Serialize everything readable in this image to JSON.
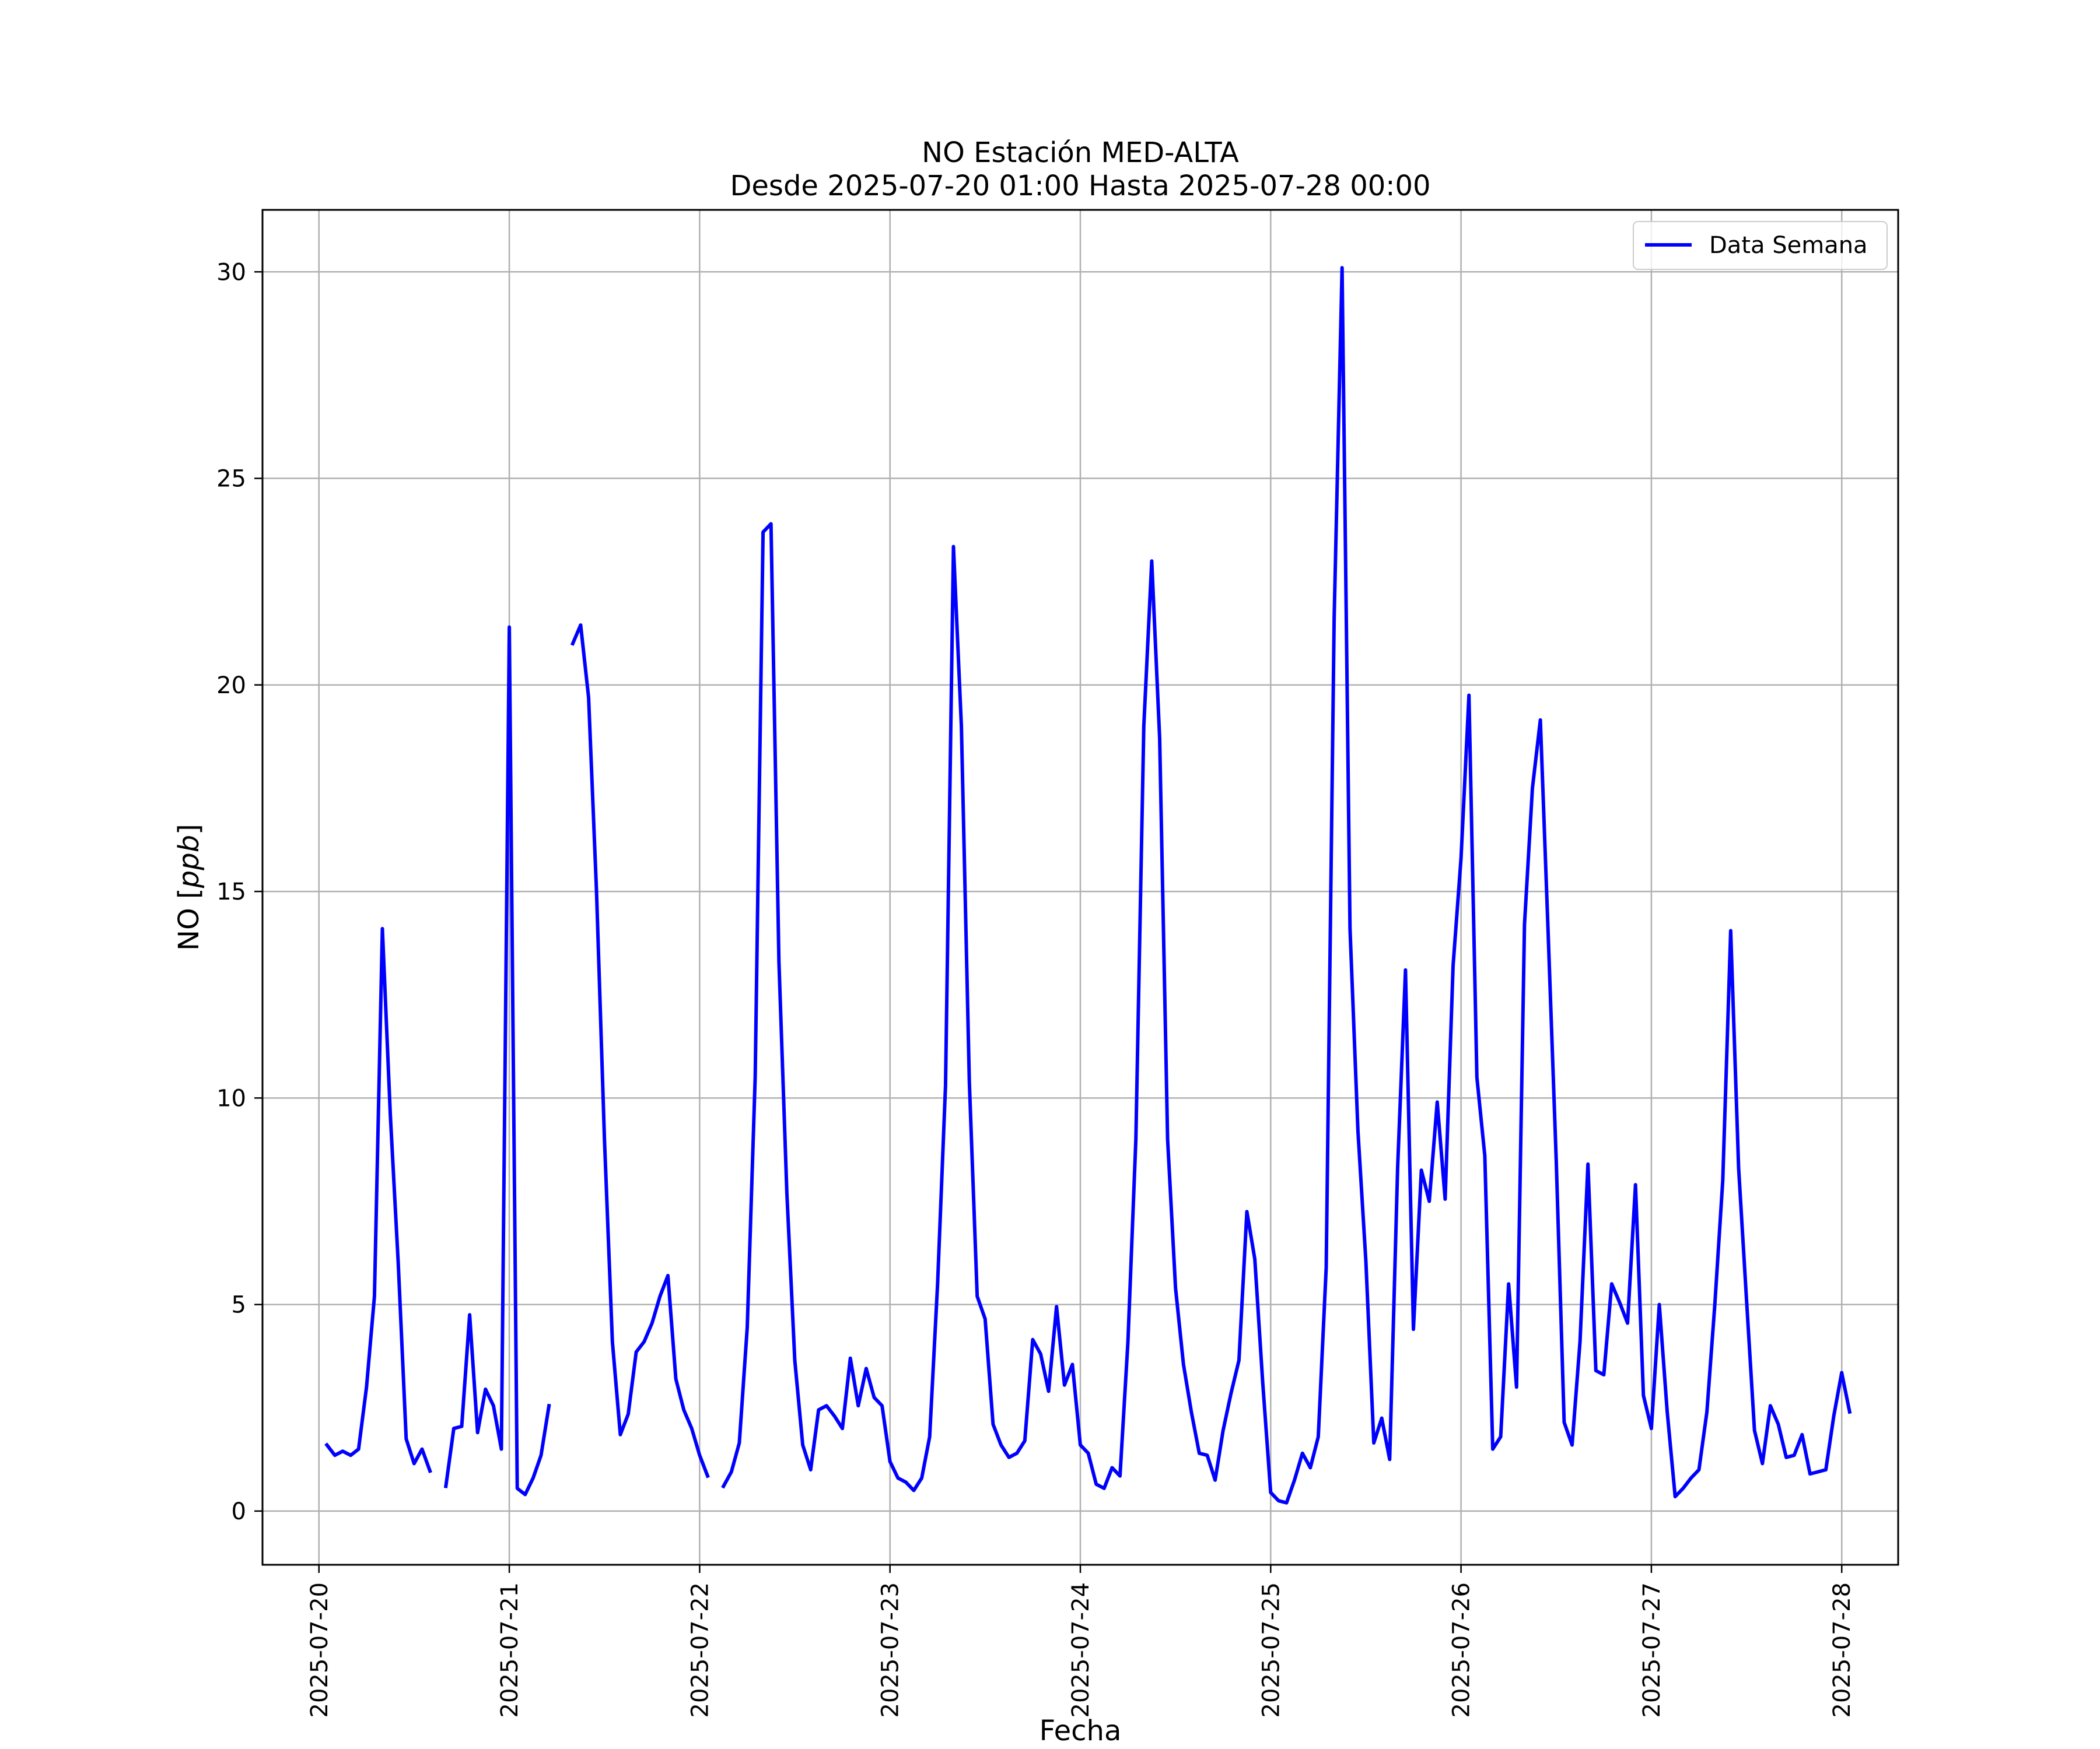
{
  "chart_data": {
    "type": "line",
    "title": "NO Estación MED-ALTA",
    "subtitle": "Desde 2025-07-20 01:00 Hasta 2025-07-28 00:00",
    "xlabel": "Fecha",
    "ylabel": "NO [ppb]",
    "ylabel_main": "NO [",
    "ylabel_unit": "ppb",
    "ylabel_close": "]",
    "xlim": [
      "2025-07-19 16:53",
      "2025-07-28 07:07"
    ],
    "ylim": [
      -1.3,
      31.5
    ],
    "x_ticks": [
      "2025-07-20",
      "2025-07-21",
      "2025-07-22",
      "2025-07-23",
      "2025-07-24",
      "2025-07-25",
      "2025-07-26",
      "2025-07-27",
      "2025-07-28"
    ],
    "y_ticks": [
      "0",
      "5",
      "10",
      "15",
      "20",
      "25",
      "30"
    ],
    "grid": true,
    "legend_position": "top-right",
    "series": [
      {
        "name": "Data Semana",
        "color": "#0000ff",
        "start": "2025-07-20 01:00",
        "interval_hours": 1,
        "values": [
          1.6,
          1.35,
          1.45,
          1.35,
          1.5,
          3.0,
          5.2,
          14.1,
          9.6,
          6.0,
          1.75,
          1.15,
          1.5,
          0.97,
          null,
          0.6,
          2.0,
          2.05,
          4.75,
          1.9,
          2.95,
          2.55,
          1.5,
          21.4,
          0.55,
          0.4,
          0.8,
          1.35,
          2.55,
          null,
          null,
          21.0,
          21.45,
          19.7,
          15.0,
          9.0,
          4.1,
          1.85,
          2.35,
          3.85,
          4.1,
          4.55,
          5.2,
          5.7,
          3.2,
          2.45,
          2.0,
          1.35,
          0.85,
          null,
          0.6,
          0.95,
          1.65,
          4.45,
          10.5,
          23.7,
          23.9,
          13.3,
          7.7,
          3.65,
          1.6,
          1.0,
          2.45,
          2.55,
          2.3,
          2.0,
          3.7,
          2.55,
          3.45,
          2.75,
          2.55,
          1.2,
          0.8,
          0.7,
          0.5,
          0.8,
          1.8,
          5.5,
          10.3,
          23.35,
          19.0,
          10.4,
          5.2,
          4.65,
          2.1,
          1.6,
          1.3,
          1.4,
          1.7,
          4.15,
          3.8,
          2.9,
          4.95,
          3.05,
          3.55,
          1.6,
          1.4,
          0.65,
          0.55,
          1.05,
          0.85,
          4.1,
          9.0,
          19.0,
          23.0,
          18.7,
          9.0,
          5.4,
          3.55,
          2.4,
          1.4,
          1.35,
          0.75,
          1.95,
          2.85,
          3.65,
          7.25,
          6.1,
          3.1,
          0.45,
          0.25,
          0.2,
          0.75,
          1.4,
          1.05,
          1.8,
          5.9,
          21.6,
          30.1,
          14.1,
          9.2,
          6.05,
          1.65,
          2.25,
          1.25,
          8.3,
          13.1,
          4.4,
          8.25,
          7.5,
          9.9,
          7.55,
          13.2,
          15.8,
          19.75,
          10.5,
          8.6,
          1.5,
          1.8,
          5.5,
          3.0,
          14.2,
          17.5,
          19.15,
          13.9,
          8.5,
          2.15,
          1.6,
          4.1,
          8.4,
          3.4,
          3.3,
          5.5,
          5.05,
          4.55,
          7.9,
          2.8,
          2.0,
          5.0,
          2.4,
          0.35,
          0.55,
          0.8,
          1.0,
          2.4,
          5.0,
          8.0,
          14.05,
          8.3,
          5.1,
          1.95,
          1.15,
          2.55,
          2.1,
          1.3,
          1.35,
          1.85,
          0.9,
          0.95,
          1.0,
          2.3,
          3.35,
          2.4
        ]
      }
    ]
  }
}
